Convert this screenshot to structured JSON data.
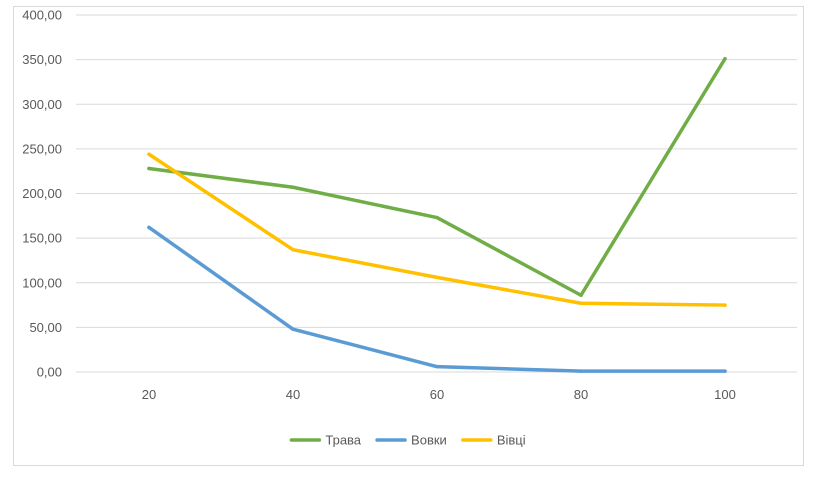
{
  "chart_data": {
    "type": "line",
    "title": "",
    "xlabel": "",
    "ylabel": "",
    "categories": [
      "20",
      "40",
      "60",
      "80",
      "100"
    ],
    "ylim": [
      0,
      400
    ],
    "ytick_step": 50,
    "ytick_labels": [
      "0,00",
      "50,00",
      "100,00",
      "150,00",
      "200,00",
      "250,00",
      "300,00",
      "350,00",
      "400,00"
    ],
    "grid": "horizontal",
    "legend_position": "bottom",
    "series": [
      {
        "name": "Трава",
        "color": "#70ad47",
        "values": [
          228,
          207,
          173,
          86,
          351
        ]
      },
      {
        "name": "Вовки",
        "color": "#5b9bd5",
        "values": [
          162,
          48,
          6,
          1,
          1
        ]
      },
      {
        "name": "Вівці",
        "color": "#ffc000",
        "values": [
          244,
          137,
          106,
          77,
          75
        ]
      }
    ]
  }
}
